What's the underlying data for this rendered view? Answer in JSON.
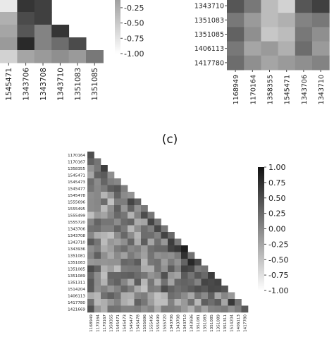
{
  "panel_c_label": "(c)",
  "colors": {
    "low": "#ffffff",
    "high": "#111111",
    "axis": "#444444"
  },
  "chart_data": [
    {
      "id": "panel-a-partial",
      "type": "heatmap",
      "x_tick_labels": [
        "1545471",
        "1343706",
        "1343708",
        "1343710",
        "1351083",
        "1351085"
      ],
      "colorbar": {
        "ticks": [
          -1.0,
          -0.75,
          -0.5,
          -0.25
        ],
        "tick_labels": [
          "-1.00",
          "-0.75",
          "-0.50",
          "-0.25"
        ],
        "range": [
          -1,
          1
        ]
      },
      "rows": [
        [
          0.1,
          0.9,
          0.85,
          null,
          null,
          null
        ],
        [
          0.35,
          0.8,
          0.85,
          null,
          null,
          null
        ],
        [
          0.4,
          0.75,
          0.55,
          0.9,
          null,
          null
        ],
        [
          0.45,
          0.95,
          0.55,
          0.65,
          0.8,
          null
        ],
        [
          0.2,
          0.4,
          0.45,
          0.5,
          0.45,
          0.6
        ]
      ]
    },
    {
      "id": "panel-b-partial",
      "type": "heatmap",
      "x_tick_labels": [
        "1168949",
        "1170164",
        "1358355",
        "1545471",
        "1343706",
        "1343710"
      ],
      "y_tick_labels": [
        "1343710",
        "1351083",
        "1351085",
        "1406113",
        "1417780"
      ],
      "rows": [
        [
          0.75,
          0.6,
          0.3,
          0.2,
          0.75,
          0.85
        ],
        [
          0.6,
          0.45,
          0.3,
          0.35,
          0.55,
          0.6
        ],
        [
          0.7,
          0.5,
          0.25,
          0.3,
          0.6,
          0.5
        ],
        [
          0.6,
          0.4,
          0.45,
          0.35,
          0.65,
          0.45
        ],
        [
          0.65,
          0.5,
          0.4,
          0.45,
          0.5,
          0.55
        ]
      ]
    },
    {
      "id": "panel-c",
      "type": "heatmap",
      "labels": [
        "1170164",
        "1170167",
        "1358355",
        "1545471",
        "1545473",
        "1545477",
        "1545478",
        "1555696",
        "1555495",
        "1555499",
        "1555720",
        "1343706",
        "1343708",
        "1343710",
        "1343936",
        "1351081",
        "1351083",
        "1351085",
        "1351089",
        "1351311",
        "1514204",
        "1406113",
        "1417780",
        "1421669"
      ],
      "x_tick_labels": [
        "1168949",
        "1170164",
        "1170167",
        "1358355",
        "1545471",
        "1545473",
        "1545477",
        "1545478",
        "1555696",
        "1555495",
        "1555499",
        "1555720",
        "1343706",
        "1343708",
        "1343710",
        "1343936",
        "1351081",
        "1351083",
        "1351085",
        "1351089",
        "1351311",
        "1514204",
        "1406113",
        "1417780"
      ],
      "colorbar": {
        "ticks": [
          1.0,
          0.75,
          0.5,
          0.25,
          0.0,
          -0.25,
          -0.5,
          -0.75,
          -1.0
        ],
        "tick_labels": [
          "1.00",
          "0.75",
          "0.50",
          "0.25",
          "0.00",
          "-0.25",
          "-0.50",
          "-0.75",
          "-1.00"
        ],
        "range": [
          -1,
          1
        ]
      },
      "value_range": [
        -1,
        1
      ]
    }
  ]
}
